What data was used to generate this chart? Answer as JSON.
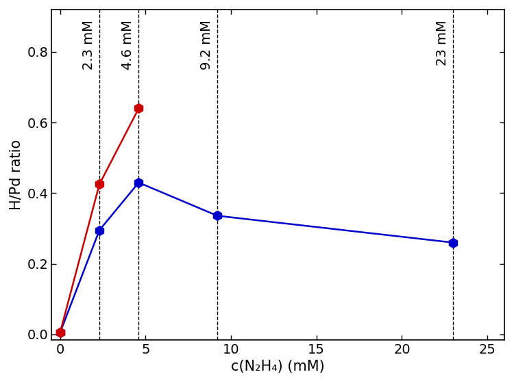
{
  "blue_x": [
    0,
    2.3,
    4.6,
    9.2,
    23
  ],
  "blue_y": [
    0.005,
    0.295,
    0.43,
    0.336,
    0.26
  ],
  "red_x": [
    0,
    2.3,
    4.6
  ],
  "red_y": [
    0.005,
    0.425,
    0.64
  ],
  "vlines": [
    2.3,
    4.6,
    9.2,
    23
  ],
  "vline_labels": [
    "2.3 mM",
    "4.6 mM",
    "9.2 mM",
    "23 mM"
  ],
  "blue_color": "#0000CC",
  "red_color": "#CC0000",
  "xlabel": "c(N₂H₄) (mM)",
  "ylabel": "H/Pd ratio",
  "xlim": [
    -0.5,
    26
  ],
  "ylim": [
    -0.015,
    0.92
  ],
  "yticks": [
    0.0,
    0.2,
    0.4,
    0.6,
    0.8
  ],
  "xticks": [
    0,
    5,
    10,
    15,
    20,
    25
  ],
  "marker": "h",
  "markersize": 10,
  "linewidth": 1.8,
  "label_fontsize": 15,
  "tick_fontsize": 14,
  "vline_fontsize": 14,
  "background_color": "#ffffff"
}
